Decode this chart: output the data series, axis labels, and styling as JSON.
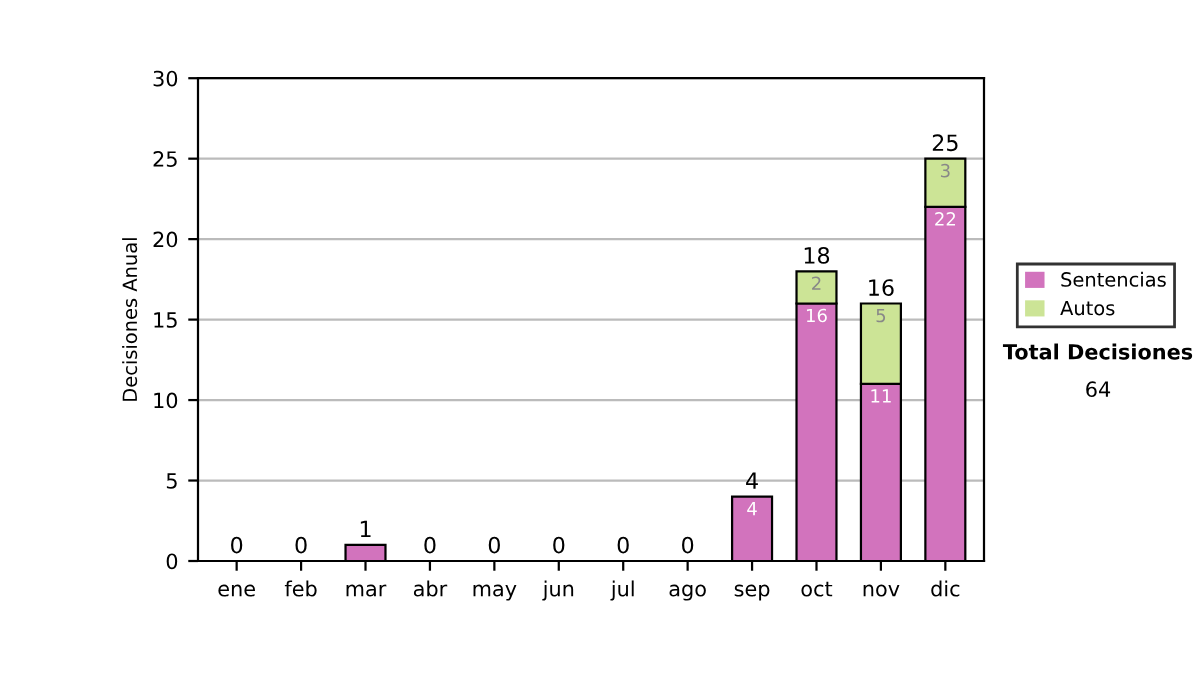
{
  "chart_data": {
    "type": "bar",
    "stacked": true,
    "ylabel": "Decisiones Anual",
    "categories": [
      "ene",
      "feb",
      "mar",
      "abr",
      "may",
      "jun",
      "jul",
      "ago",
      "sep",
      "oct",
      "nov",
      "dic"
    ],
    "series": [
      {
        "name": "Sentencias",
        "color": "#d273bd",
        "values": [
          0,
          0,
          1,
          0,
          0,
          0,
          0,
          0,
          4,
          16,
          11,
          22
        ],
        "value_labels": [
          null,
          null,
          null,
          null,
          null,
          null,
          null,
          null,
          "4",
          "16",
          "11",
          "22"
        ]
      },
      {
        "name": "Autos",
        "color": "#cce496",
        "values": [
          0,
          0,
          0,
          0,
          0,
          0,
          0,
          0,
          0,
          2,
          5,
          3
        ],
        "value_labels": [
          null,
          null,
          null,
          null,
          null,
          null,
          null,
          null,
          null,
          "2",
          "5",
          "3"
        ]
      }
    ],
    "totals": [
      "0",
      "0",
      "1",
      "0",
      "0",
      "0",
      "0",
      "0",
      "4",
      "18",
      "16",
      "25"
    ],
    "ylim": [
      0,
      30
    ],
    "yticks": [
      0,
      5,
      10,
      15,
      20,
      25,
      30
    ],
    "grid": "y",
    "legend": "right",
    "annotations": [
      "Total Decisiones",
      "64"
    ]
  }
}
